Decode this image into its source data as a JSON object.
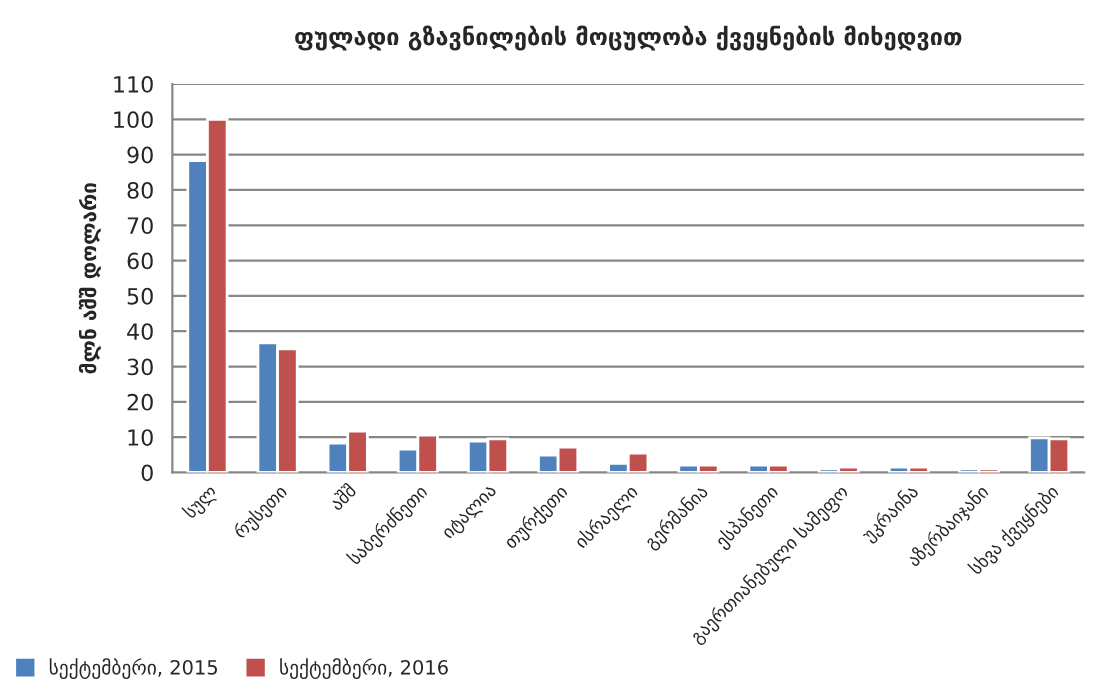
{
  "chart_data": {
    "type": "bar",
    "title": "ფულადი გზავნილების მოცულობა ქვეყნების მიხედვით",
    "ylabel": "მლნ აშშ დოლარი",
    "categories": [
      "სულ",
      "რუსეთი",
      "აშშ",
      "საბერძნეთი",
      "იტალია",
      "თურქეთი",
      "ისრაელი",
      "გერმანია",
      "ესპანეთი",
      "გაერთიანებული სამეფო",
      "უკრაინა",
      "აზერბაიჯანი",
      "სხვა ქვეყნები"
    ],
    "series": [
      {
        "name": "სექტემბერი, 2015",
        "color": "#4f81bd",
        "values": [
          88.3,
          36.7,
          8.3,
          6.6,
          8.9,
          4.9,
          2.6,
          2.1,
          2.1,
          1.0,
          1.5,
          1.0,
          9.8
        ]
      },
      {
        "name": "სექტემბერი, 2016",
        "color": "#c0504d",
        "values": [
          100,
          35.0,
          11.7,
          10.6,
          9.5,
          7.2,
          5.5,
          2.1,
          2.1,
          1.5,
          1.5,
          1.0,
          9.5
        ]
      }
    ],
    "ylim": [
      0,
      110
    ],
    "yticks": [
      0,
      10,
      20,
      30,
      40,
      50,
      60,
      70,
      80,
      90,
      100,
      110
    ],
    "grid": "y",
    "legend": "bottom left"
  }
}
